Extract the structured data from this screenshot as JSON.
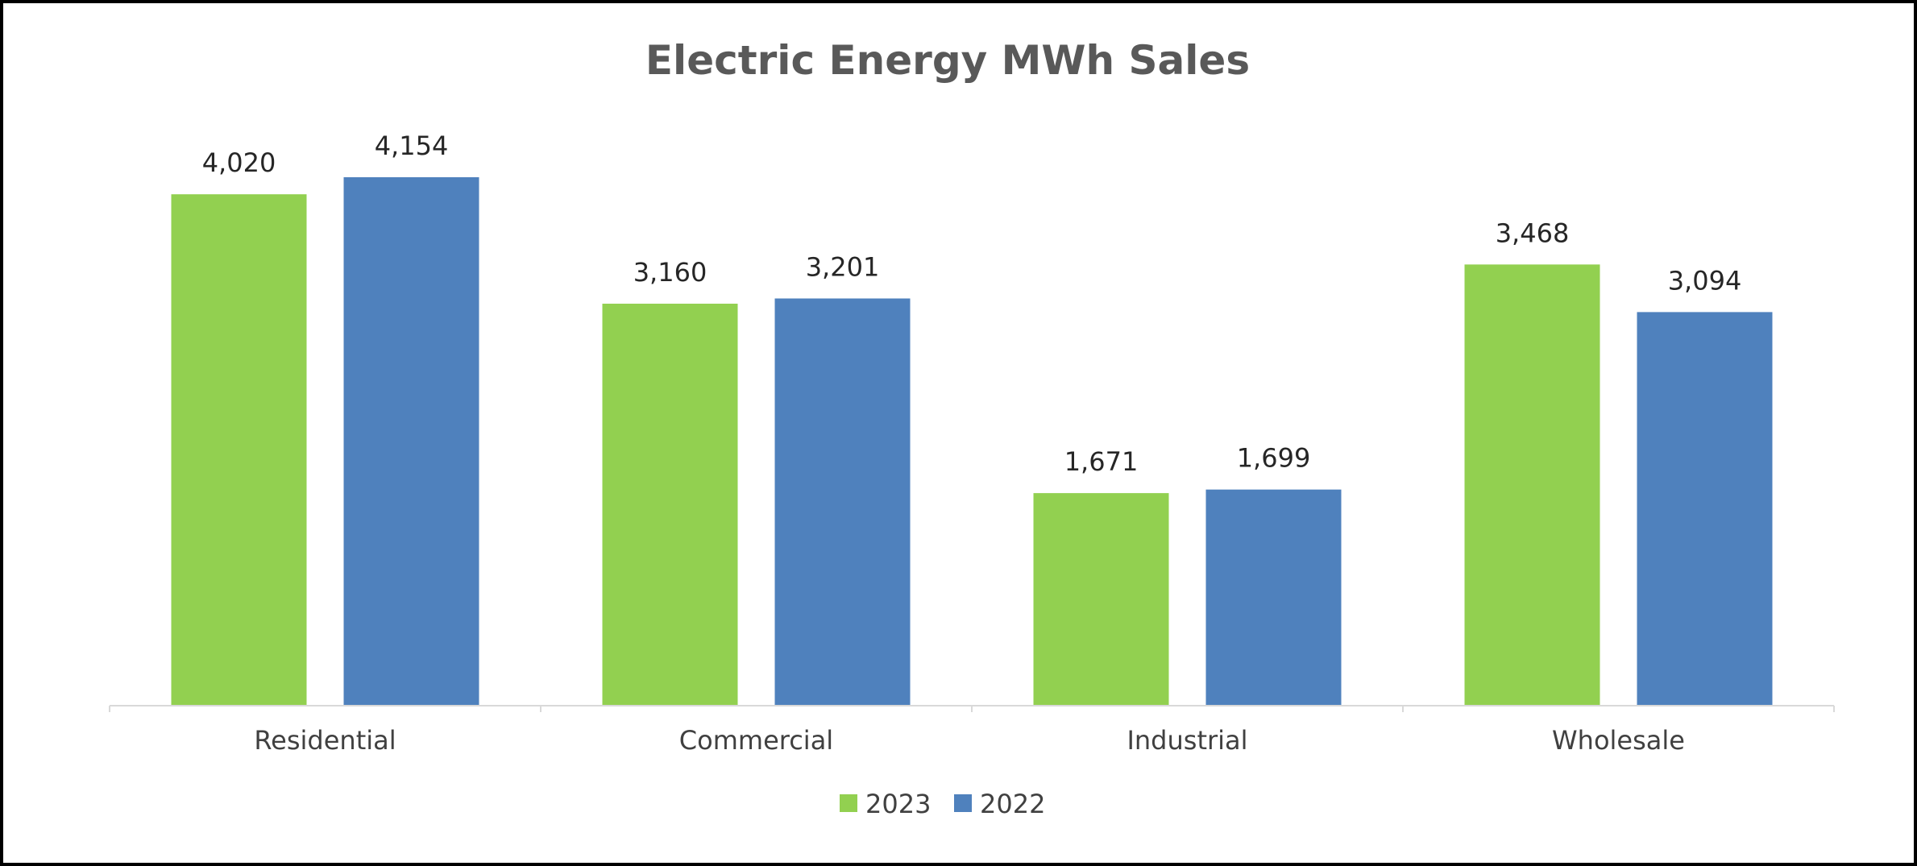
{
  "chart_data": {
    "type": "bar",
    "title": "Electric Energy MWh Sales",
    "categories": [
      "Residential",
      "Commercial",
      "Industrial",
      "Wholesale"
    ],
    "series": [
      {
        "name": "2023",
        "color": "#92d050",
        "values": [
          4020,
          3160,
          1671,
          3468
        ],
        "labels": [
          "4,020",
          "3,160",
          "1,671",
          "3,468"
        ]
      },
      {
        "name": "2022",
        "color": "#4f81bd",
        "values": [
          4154,
          3201,
          1699,
          3094
        ],
        "labels": [
          "4,154",
          "3,201",
          "1,699",
          "3,094"
        ]
      }
    ],
    "ylim": [
      0,
      4154
    ],
    "grid": false,
    "legend": "bottom"
  }
}
